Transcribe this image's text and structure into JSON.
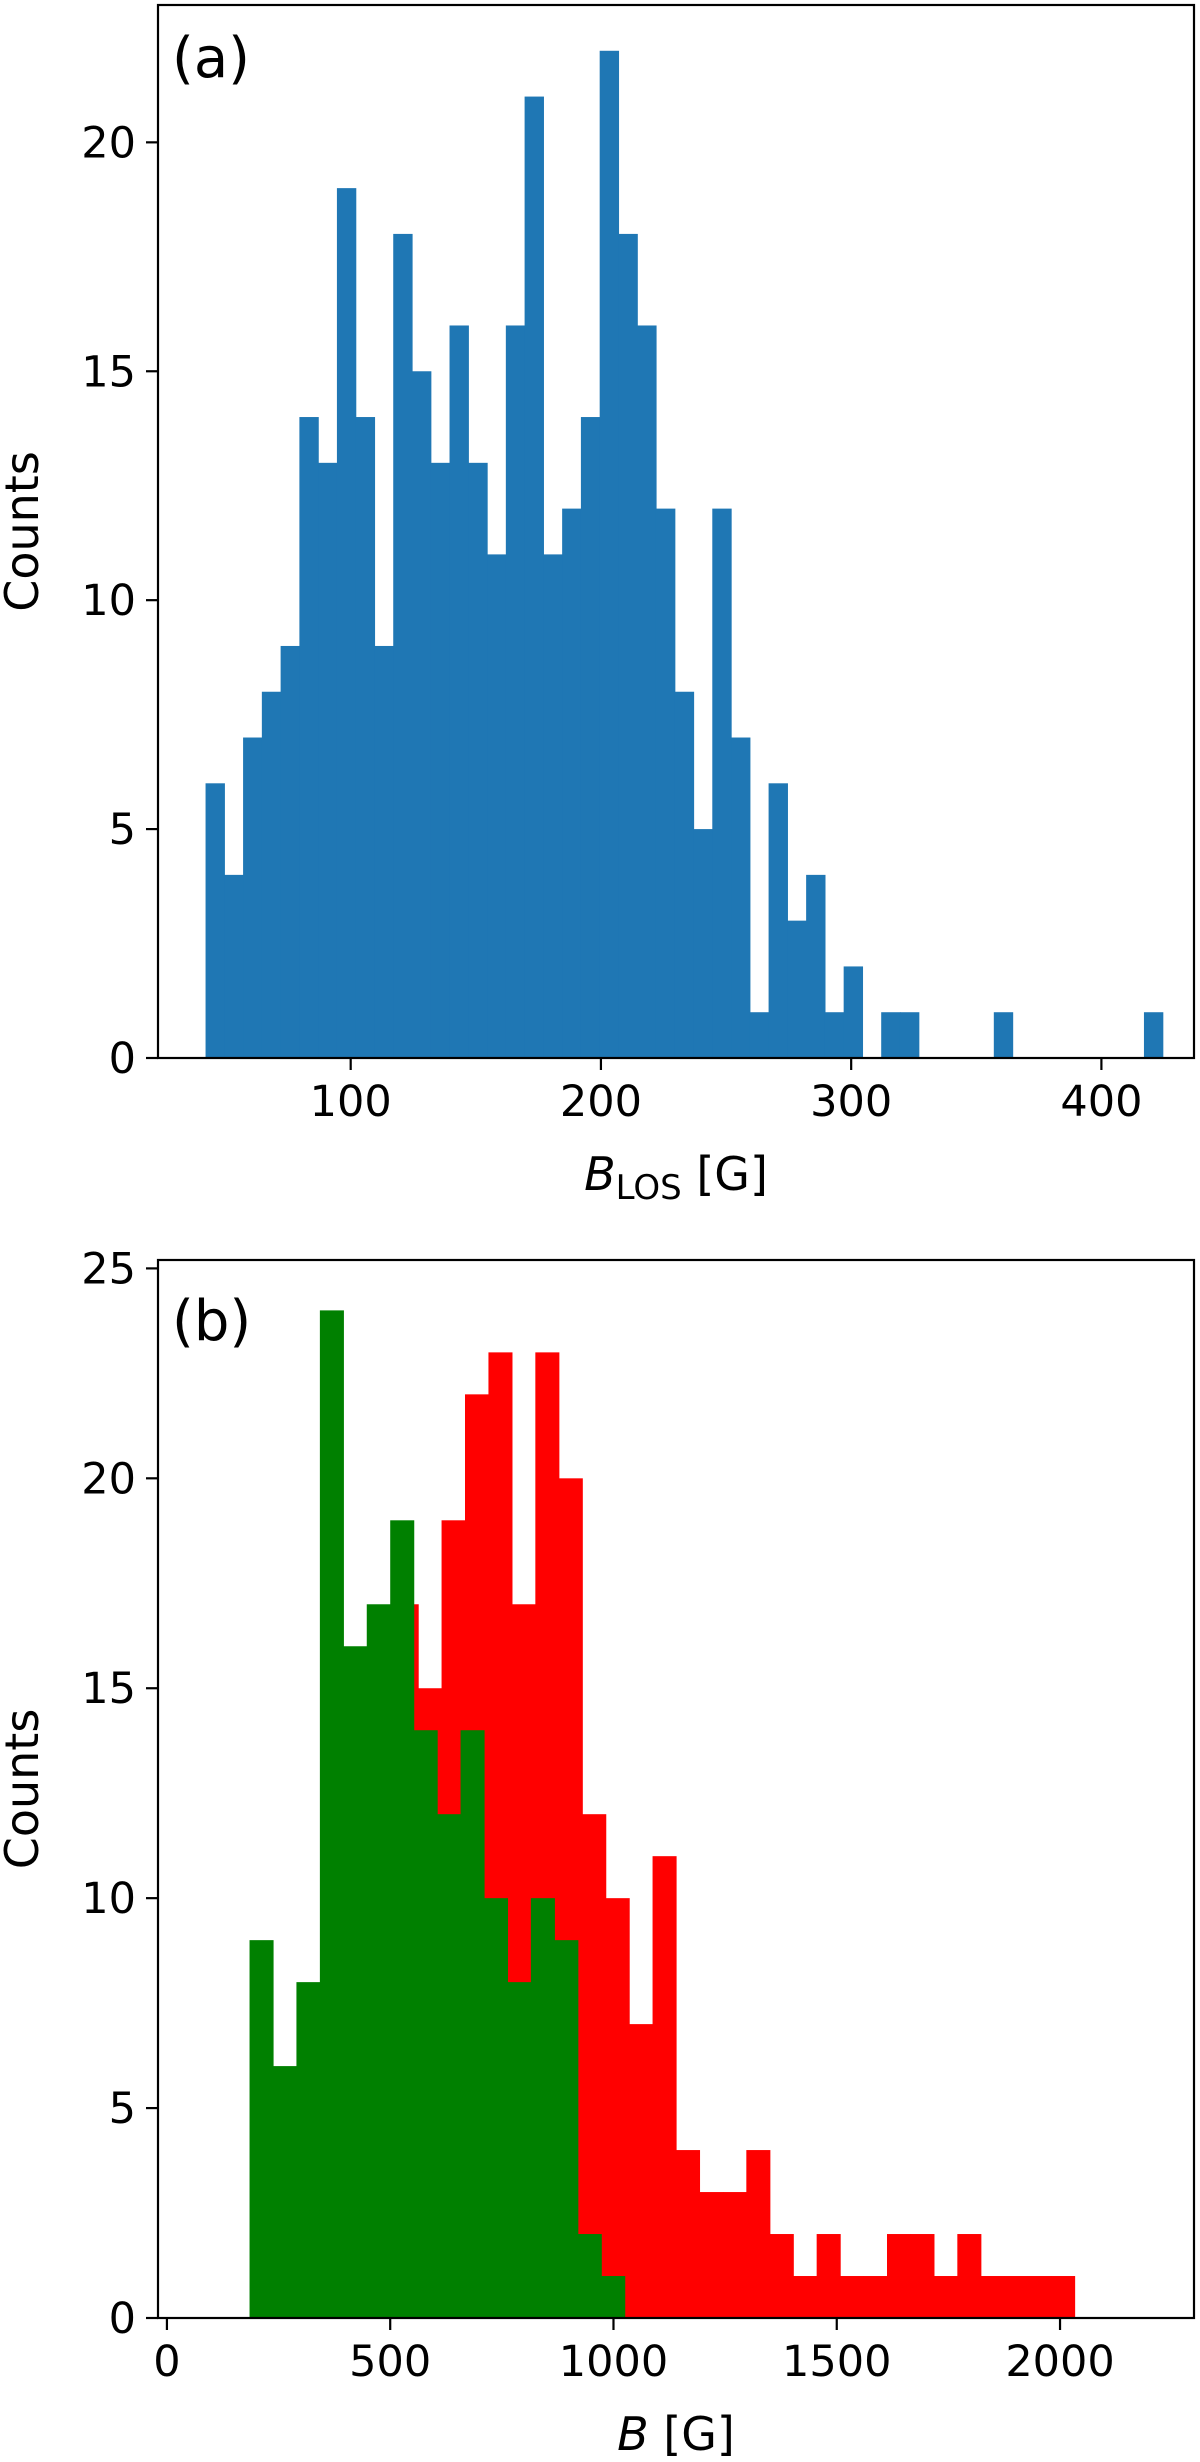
{
  "chart_data": [
    {
      "type": "bar",
      "panel_label": "(a)",
      "xlabel_main": "B",
      "xlabel_sub": "LOS",
      "xlabel_unit": "[G]",
      "ylabel": "Counts",
      "xlim": [
        23,
        437
      ],
      "ylim": [
        0,
        23
      ],
      "xticks": [
        100,
        200,
        300,
        400
      ],
      "yticks": [
        0,
        5,
        10,
        15,
        20
      ],
      "grid": false,
      "legend": "none",
      "bin_width": 7.5,
      "series": [
        {
          "color": "#1f77b4",
          "bins": [
            {
              "x": 42,
              "y": 6
            },
            {
              "x": 49.5,
              "y": 4
            },
            {
              "x": 57,
              "y": 7
            },
            {
              "x": 64.5,
              "y": 8
            },
            {
              "x": 72,
              "y": 9
            },
            {
              "x": 79.5,
              "y": 14
            },
            {
              "x": 87,
              "y": 13
            },
            {
              "x": 94.5,
              "y": 19
            },
            {
              "x": 102,
              "y": 14
            },
            {
              "x": 109.5,
              "y": 9
            },
            {
              "x": 117,
              "y": 18
            },
            {
              "x": 124.5,
              "y": 15
            },
            {
              "x": 132,
              "y": 13
            },
            {
              "x": 139.5,
              "y": 16
            },
            {
              "x": 147,
              "y": 13
            },
            {
              "x": 154.5,
              "y": 11
            },
            {
              "x": 162,
              "y": 16
            },
            {
              "x": 169.5,
              "y": 21
            },
            {
              "x": 177,
              "y": 11
            },
            {
              "x": 184.5,
              "y": 12
            },
            {
              "x": 192,
              "y": 14
            },
            {
              "x": 199.5,
              "y": 22
            },
            {
              "x": 207,
              "y": 18
            },
            {
              "x": 214.5,
              "y": 16
            },
            {
              "x": 222,
              "y": 12
            },
            {
              "x": 229.5,
              "y": 8
            },
            {
              "x": 237,
              "y": 5
            },
            {
              "x": 244.5,
              "y": 12
            },
            {
              "x": 252,
              "y": 7
            },
            {
              "x": 259.5,
              "y": 1
            },
            {
              "x": 267,
              "y": 6
            },
            {
              "x": 274.5,
              "y": 3
            },
            {
              "x": 282,
              "y": 4
            },
            {
              "x": 289.5,
              "y": 1
            },
            {
              "x": 297,
              "y": 2
            },
            {
              "x": 312,
              "y": 1
            },
            {
              "x": 319.5,
              "y": 1
            },
            {
              "x": 357,
              "y": 1
            },
            {
              "x": 417,
              "y": 1
            }
          ]
        }
      ]
    },
    {
      "type": "bar",
      "panel_label": "(b)",
      "xlabel_main": "B",
      "xlabel_sub": "",
      "xlabel_unit": "[G]",
      "ylabel": "Counts",
      "xlim": [
        -20,
        2300
      ],
      "ylim": [
        0,
        25.2
      ],
      "xticks": [
        0,
        500,
        1000,
        1500,
        2000
      ],
      "yticks": [
        0,
        5,
        10,
        15,
        20,
        25
      ],
      "grid": false,
      "legend": "none",
      "bin_width": 52.5,
      "series": [
        {
          "color": "#ff0000",
          "bins": [
            {
              "x": 510,
              "y": 17
            },
            {
              "x": 562.5,
              "y": 15
            },
            {
              "x": 615,
              "y": 19
            },
            {
              "x": 667.5,
              "y": 22
            },
            {
              "x": 720,
              "y": 23
            },
            {
              "x": 772.5,
              "y": 17
            },
            {
              "x": 825,
              "y": 23
            },
            {
              "x": 877.5,
              "y": 20
            },
            {
              "x": 930,
              "y": 12
            },
            {
              "x": 982.5,
              "y": 10
            },
            {
              "x": 1035,
              "y": 7
            },
            {
              "x": 1087.5,
              "y": 11
            },
            {
              "x": 1140,
              "y": 4
            },
            {
              "x": 1192.5,
              "y": 3
            },
            {
              "x": 1245,
              "y": 3
            },
            {
              "x": 1297.5,
              "y": 4
            },
            {
              "x": 1350,
              "y": 2
            },
            {
              "x": 1402.5,
              "y": 1
            },
            {
              "x": 1455,
              "y": 2
            },
            {
              "x": 1507.5,
              "y": 1
            },
            {
              "x": 1560,
              "y": 1
            },
            {
              "x": 1612.5,
              "y": 2
            },
            {
              "x": 1665,
              "y": 2
            },
            {
              "x": 1717.5,
              "y": 1
            },
            {
              "x": 1770,
              "y": 2
            },
            {
              "x": 1822.5,
              "y": 1
            },
            {
              "x": 1875,
              "y": 1
            },
            {
              "x": 1927.5,
              "y": 1
            },
            {
              "x": 1980,
              "y": 1
            }
          ]
        },
        {
          "color": "#008000",
          "bins": [
            {
              "x": 185,
              "y": 9
            },
            {
              "x": 237.5,
              "y": 6
            },
            {
              "x": 290,
              "y": 8
            },
            {
              "x": 342.5,
              "y": 24
            },
            {
              "x": 395,
              "y": 16
            },
            {
              "x": 447.5,
              "y": 17
            },
            {
              "x": 500,
              "y": 19
            },
            {
              "x": 552.5,
              "y": 14
            },
            {
              "x": 605,
              "y": 12
            },
            {
              "x": 657.5,
              "y": 14
            },
            {
              "x": 710,
              "y": 10
            },
            {
              "x": 762.5,
              "y": 8
            },
            {
              "x": 815,
              "y": 10
            },
            {
              "x": 867.5,
              "y": 9
            },
            {
              "x": 920,
              "y": 2
            },
            {
              "x": 972.5,
              "y": 1
            }
          ]
        }
      ]
    }
  ]
}
